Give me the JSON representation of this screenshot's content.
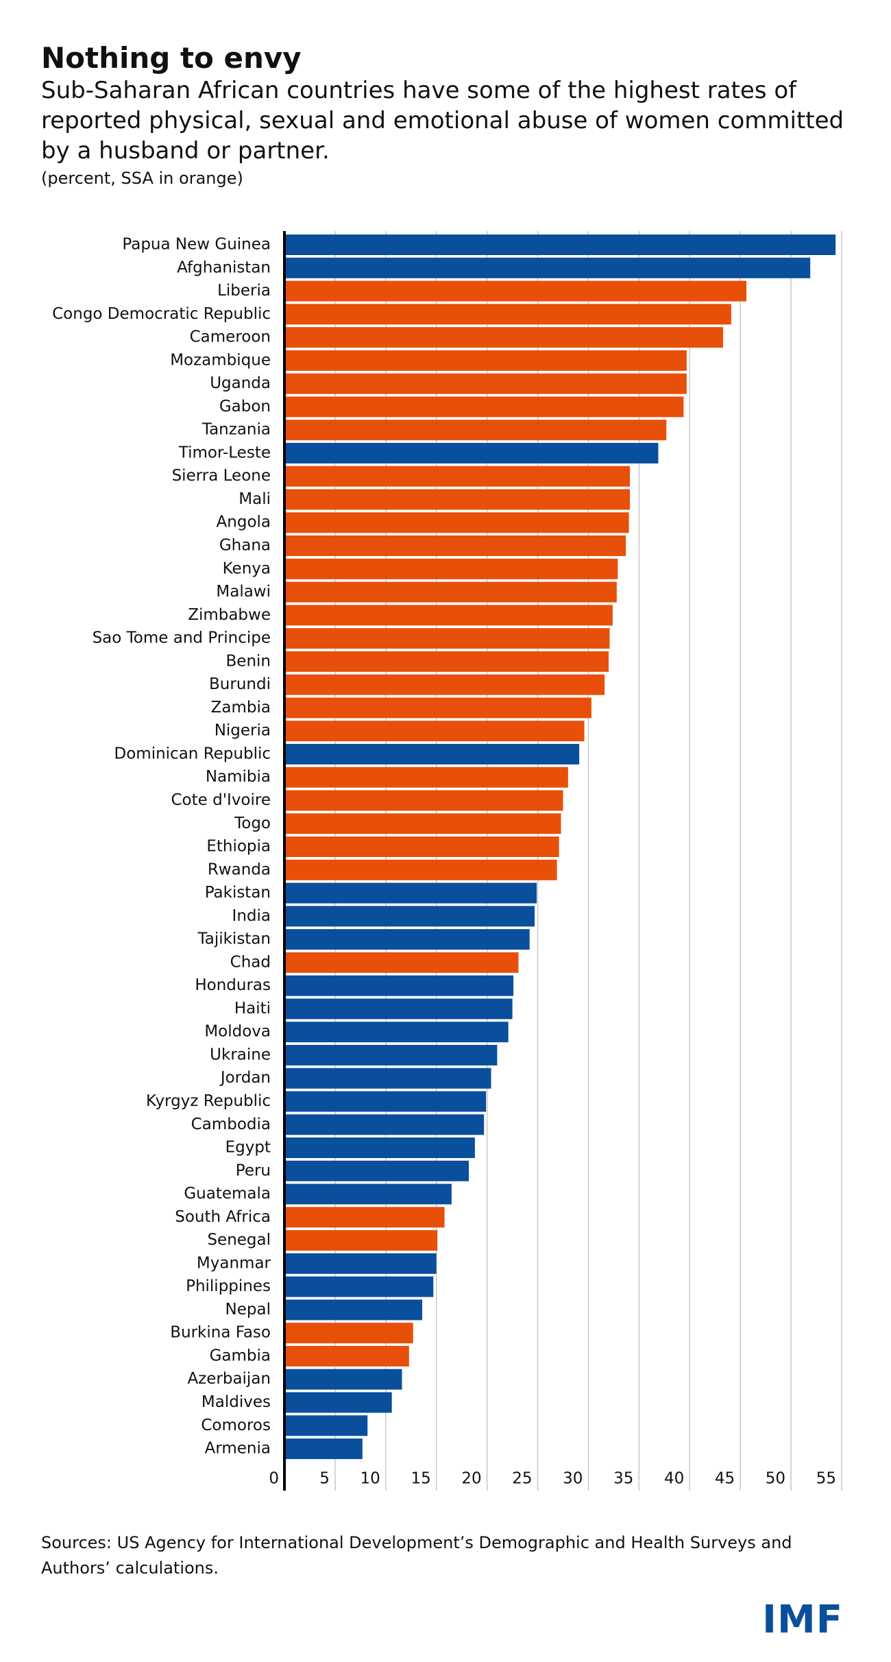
{
  "chart_data": {
    "type": "barh",
    "title": "Nothing to envy",
    "subtitle": "Sub-Saharan African countries have some of the highest rates of reported physical, sexual and emotional abuse of women committed by a husband or partner.",
    "note": "(percent, SSA in orange)",
    "source": "Sources: US Agency for International Development’s Demographic and Health Surveys and Authors’ calculations.",
    "logo": "IMF",
    "categories": [
      "Papua New Guinea",
      "Afghanistan",
      "Liberia",
      "Congo Democratic Republic",
      "Cameroon",
      "Mozambique",
      "Uganda",
      "Gabon",
      "Tanzania",
      "Timor-Leste",
      "Sierra Leone",
      "Mali",
      "Angola",
      "Ghana",
      "Kenya",
      "Malawi",
      "Zimbabwe",
      "Sao Tome and Principe",
      "Benin",
      "Burundi",
      "Zambia",
      "Nigeria",
      "Dominican Republic",
      "Namibia",
      "Cote d'Ivoire",
      "Togo",
      "Ethiopia",
      "Rwanda",
      "Pakistan",
      "India",
      "Tajikistan",
      "Chad",
      "Honduras",
      "Haiti",
      "Moldova",
      "Ukraine",
      "Jordan",
      "Kyrgyz Republic",
      "Cambodia",
      "Egypt",
      "Peru",
      "Guatemala",
      "South Africa",
      "Senegal",
      "Myanmar",
      "Philippines",
      "Nepal",
      "Burkina Faso",
      "Gambia",
      "Azerbaijan",
      "Maldives",
      "Comoros",
      "Armenia"
    ],
    "values": [
      54.4,
      51.9,
      45.6,
      44.1,
      43.3,
      39.7,
      39.7,
      39.4,
      37.7,
      36.9,
      34.1,
      34.1,
      34.0,
      33.7,
      32.9,
      32.8,
      32.4,
      32.1,
      32.0,
      31.6,
      30.3,
      29.6,
      29.1,
      28.0,
      27.5,
      27.3,
      27.1,
      26.9,
      24.9,
      24.7,
      24.2,
      23.1,
      22.6,
      22.5,
      22.1,
      21.0,
      20.4,
      19.9,
      19.7,
      18.8,
      18.2,
      16.5,
      15.8,
      15.1,
      15.0,
      14.7,
      13.6,
      12.7,
      12.3,
      11.6,
      10.6,
      8.2,
      7.7
    ],
    "colors": [
      "#0a4f9c",
      "#0a4f9c",
      "#e8500a",
      "#e8500a",
      "#e8500a",
      "#e8500a",
      "#e8500a",
      "#e8500a",
      "#e8500a",
      "#0a4f9c",
      "#e8500a",
      "#e8500a",
      "#e8500a",
      "#e8500a",
      "#e8500a",
      "#e8500a",
      "#e8500a",
      "#e8500a",
      "#e8500a",
      "#e8500a",
      "#e8500a",
      "#e8500a",
      "#0a4f9c",
      "#e8500a",
      "#e8500a",
      "#e8500a",
      "#e8500a",
      "#e8500a",
      "#0a4f9c",
      "#0a4f9c",
      "#0a4f9c",
      "#e8500a",
      "#0a4f9c",
      "#0a4f9c",
      "#0a4f9c",
      "#0a4f9c",
      "#0a4f9c",
      "#0a4f9c",
      "#0a4f9c",
      "#0a4f9c",
      "#0a4f9c",
      "#0a4f9c",
      "#e8500a",
      "#e8500a",
      "#0a4f9c",
      "#0a4f9c",
      "#0a4f9c",
      "#e8500a",
      "#e8500a",
      "#0a4f9c",
      "#0a4f9c",
      "#0a4f9c",
      "#0a4f9c"
    ],
    "xlim": [
      0,
      55
    ],
    "xticks": [
      0,
      5,
      10,
      15,
      20,
      25,
      30,
      35,
      40,
      45,
      50,
      55
    ],
    "grid": true
  }
}
